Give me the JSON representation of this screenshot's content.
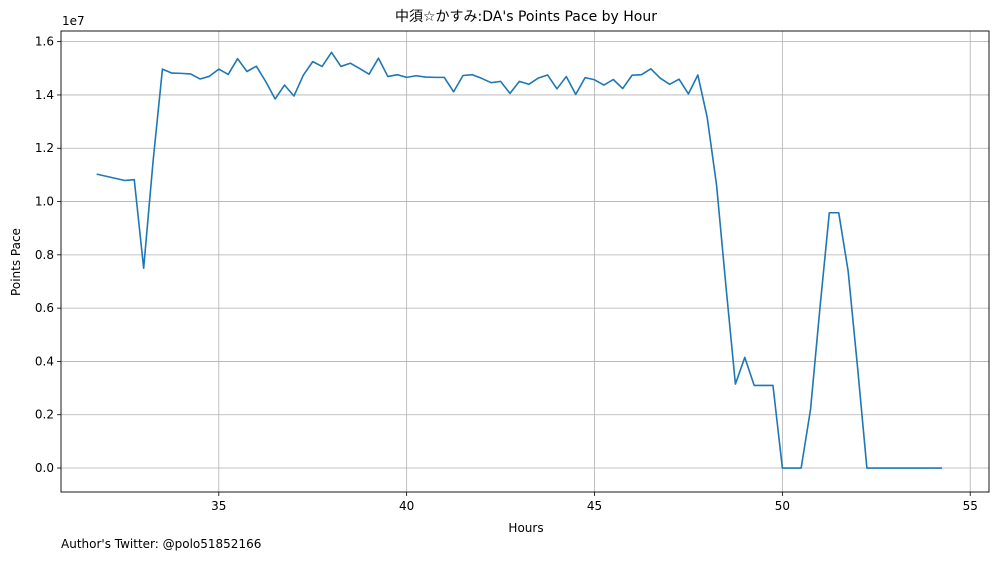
{
  "chart_data": {
    "type": "line",
    "title": "中須☆かすみ:DA's Points Pace by Hour",
    "xlabel": "Hours",
    "ylabel": "Points Pace",
    "y_offset_label": "1e7",
    "xlim": [
      30.8,
      55.5
    ],
    "ylim": [
      -0.09,
      1.64
    ],
    "y_scale_factor": 10000000,
    "xticks": [
      35,
      40,
      45,
      50,
      55
    ],
    "yticks": [
      0.0,
      0.2,
      0.4,
      0.6,
      0.8,
      1.0,
      1.2,
      1.4,
      1.6
    ],
    "ytick_labels": [
      "0.0",
      "0.2",
      "0.4",
      "0.6",
      "0.8",
      "1.0",
      "1.2",
      "1.4",
      "1.6"
    ],
    "grid": true,
    "series": [
      {
        "color": "#1f77b4",
        "x": [
          31.75,
          32.5,
          32.75,
          33.0,
          33.25,
          33.5,
          33.75,
          34.0,
          34.25,
          34.5,
          34.75,
          35.0,
          35.25,
          35.5,
          35.75,
          36.0,
          36.25,
          36.5,
          36.75,
          37.0,
          37.25,
          37.5,
          37.75,
          38.0,
          38.25,
          38.5,
          38.75,
          39.0,
          39.25,
          39.5,
          39.75,
          40.0,
          40.25,
          40.5,
          40.75,
          41.0,
          41.25,
          41.5,
          41.75,
          42.0,
          42.25,
          42.5,
          42.75,
          43.0,
          43.25,
          43.5,
          43.75,
          44.0,
          44.25,
          44.5,
          44.75,
          45.0,
          45.25,
          45.5,
          45.75,
          46.0,
          46.25,
          46.5,
          46.75,
          47.0,
          47.25,
          47.5,
          47.75,
          48.0,
          48.25,
          48.5,
          48.75,
          49.0,
          49.25,
          49.5,
          49.75,
          50.0,
          50.25,
          50.5,
          50.75,
          51.0,
          51.25,
          51.5,
          51.75,
          52.0,
          52.25,
          52.5,
          52.75,
          53.0,
          53.25,
          53.5,
          53.75,
          54.0,
          54.25
        ],
        "values": [
          1.103,
          1.079,
          1.082,
          0.75,
          1.15,
          1.497,
          1.482,
          1.481,
          1.479,
          1.46,
          1.47,
          1.497,
          1.477,
          1.536,
          1.488,
          1.508,
          1.45,
          1.385,
          1.437,
          1.396,
          1.474,
          1.525,
          1.507,
          1.56,
          1.507,
          1.519,
          1.499,
          1.478,
          1.538,
          1.469,
          1.476,
          1.466,
          1.472,
          1.467,
          1.466,
          1.466,
          1.412,
          1.473,
          1.476,
          1.462,
          1.446,
          1.451,
          1.406,
          1.451,
          1.44,
          1.463,
          1.475,
          1.423,
          1.469,
          1.402,
          1.465,
          1.457,
          1.437,
          1.458,
          1.424,
          1.474,
          1.476,
          1.498,
          1.463,
          1.44,
          1.459,
          1.404,
          1.475,
          1.315,
          1.06,
          0.68,
          0.315,
          0.415,
          0.31,
          0.31,
          0.31,
          0.0,
          0.0,
          0.0,
          0.22,
          0.6,
          0.958,
          0.958,
          0.74,
          0.38,
          0.0,
          0.0,
          0.0,
          0.0,
          0.0,
          0.0,
          0.0,
          0.0,
          0.0
        ]
      }
    ]
  },
  "footer": {
    "author": "Author's Twitter: @polo51852166"
  }
}
